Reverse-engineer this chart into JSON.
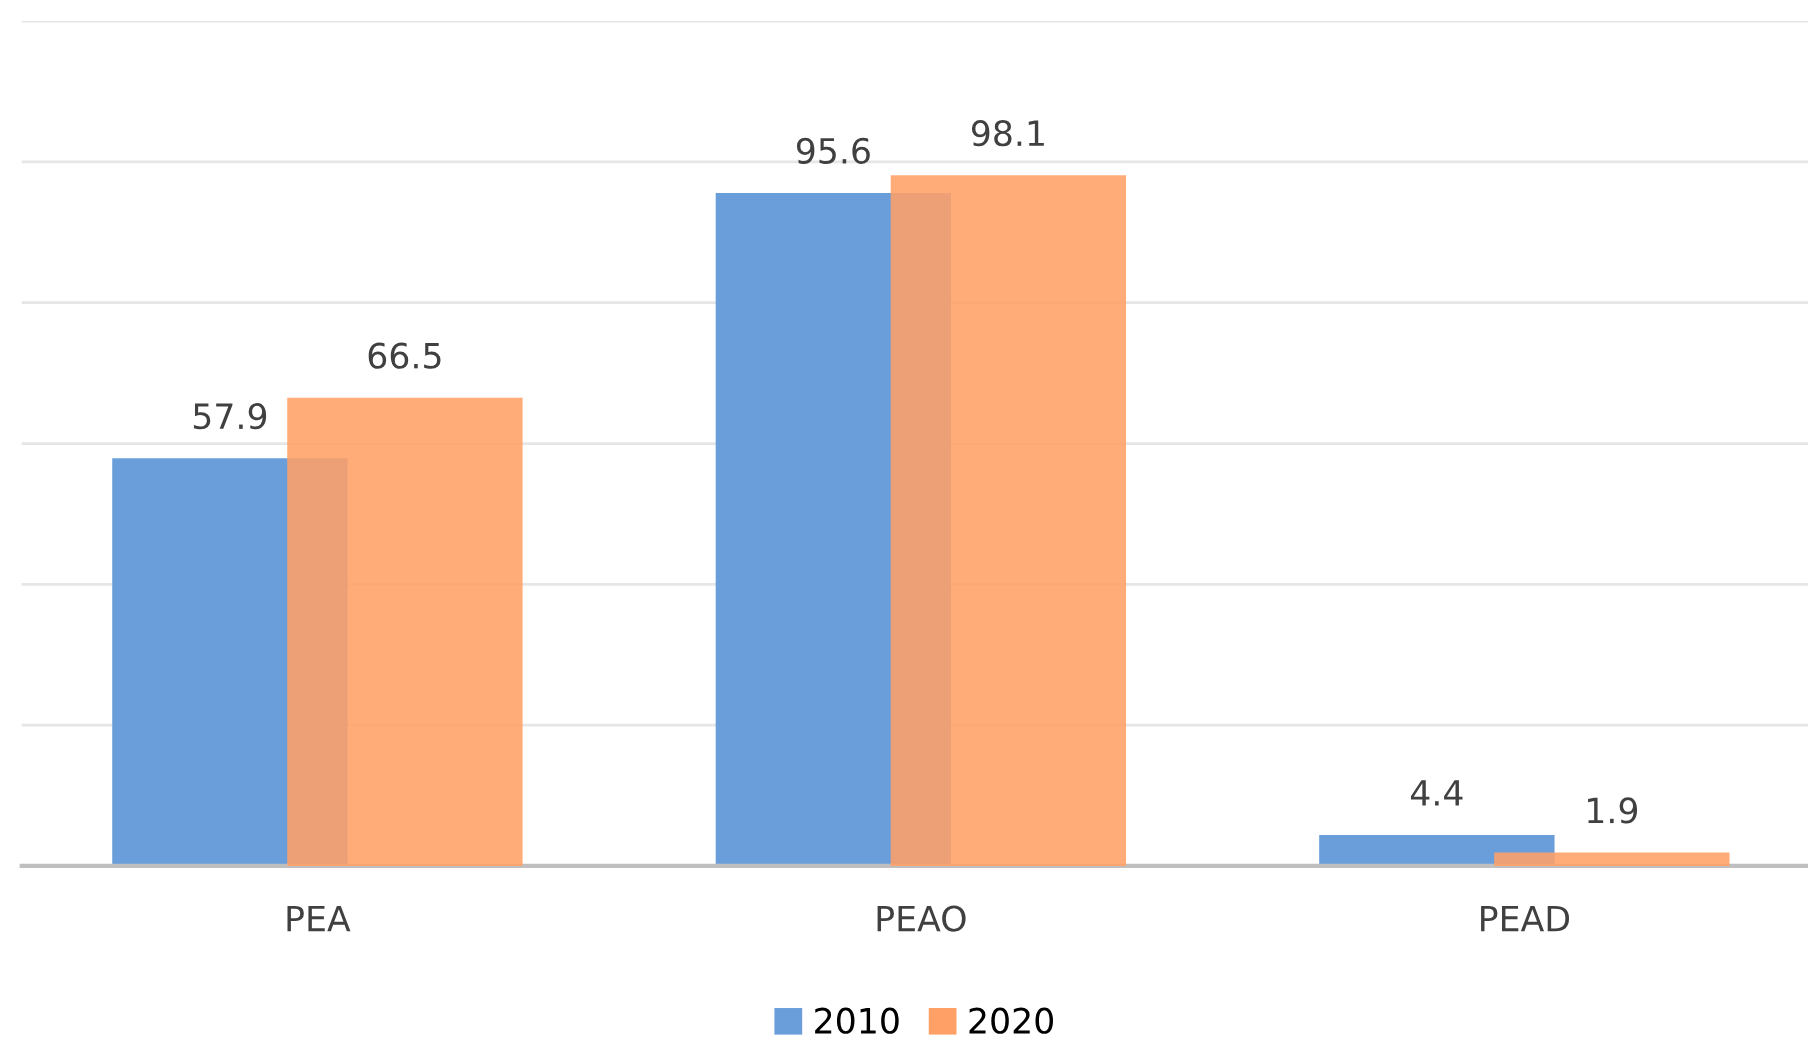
{
  "chart_data": {
    "type": "bar",
    "categories": [
      "PEA",
      "PEAO",
      "PEAD"
    ],
    "series": [
      {
        "name": "2010",
        "color": "#6a9edb",
        "values": [
          57.9,
          95.6,
          4.4
        ]
      },
      {
        "name": "2020",
        "color": "#ffa066",
        "values": [
          66.5,
          98.1,
          1.9
        ]
      }
    ],
    "ylim": [
      0,
      120
    ],
    "yticks": [
      {
        "value": 0,
        "label": null
      },
      {
        "value": 20,
        "label": null
      },
      {
        "value": 40,
        "label": null
      },
      {
        "value": 60,
        "label": null
      },
      {
        "value": 80,
        "label": null
      },
      {
        "value": 100,
        "label": null
      },
      {
        "value": 120,
        "label": null
      }
    ],
    "tick_labels": "x",
    "grid": "y",
    "legend": "bottom",
    "data_labels": true
  }
}
